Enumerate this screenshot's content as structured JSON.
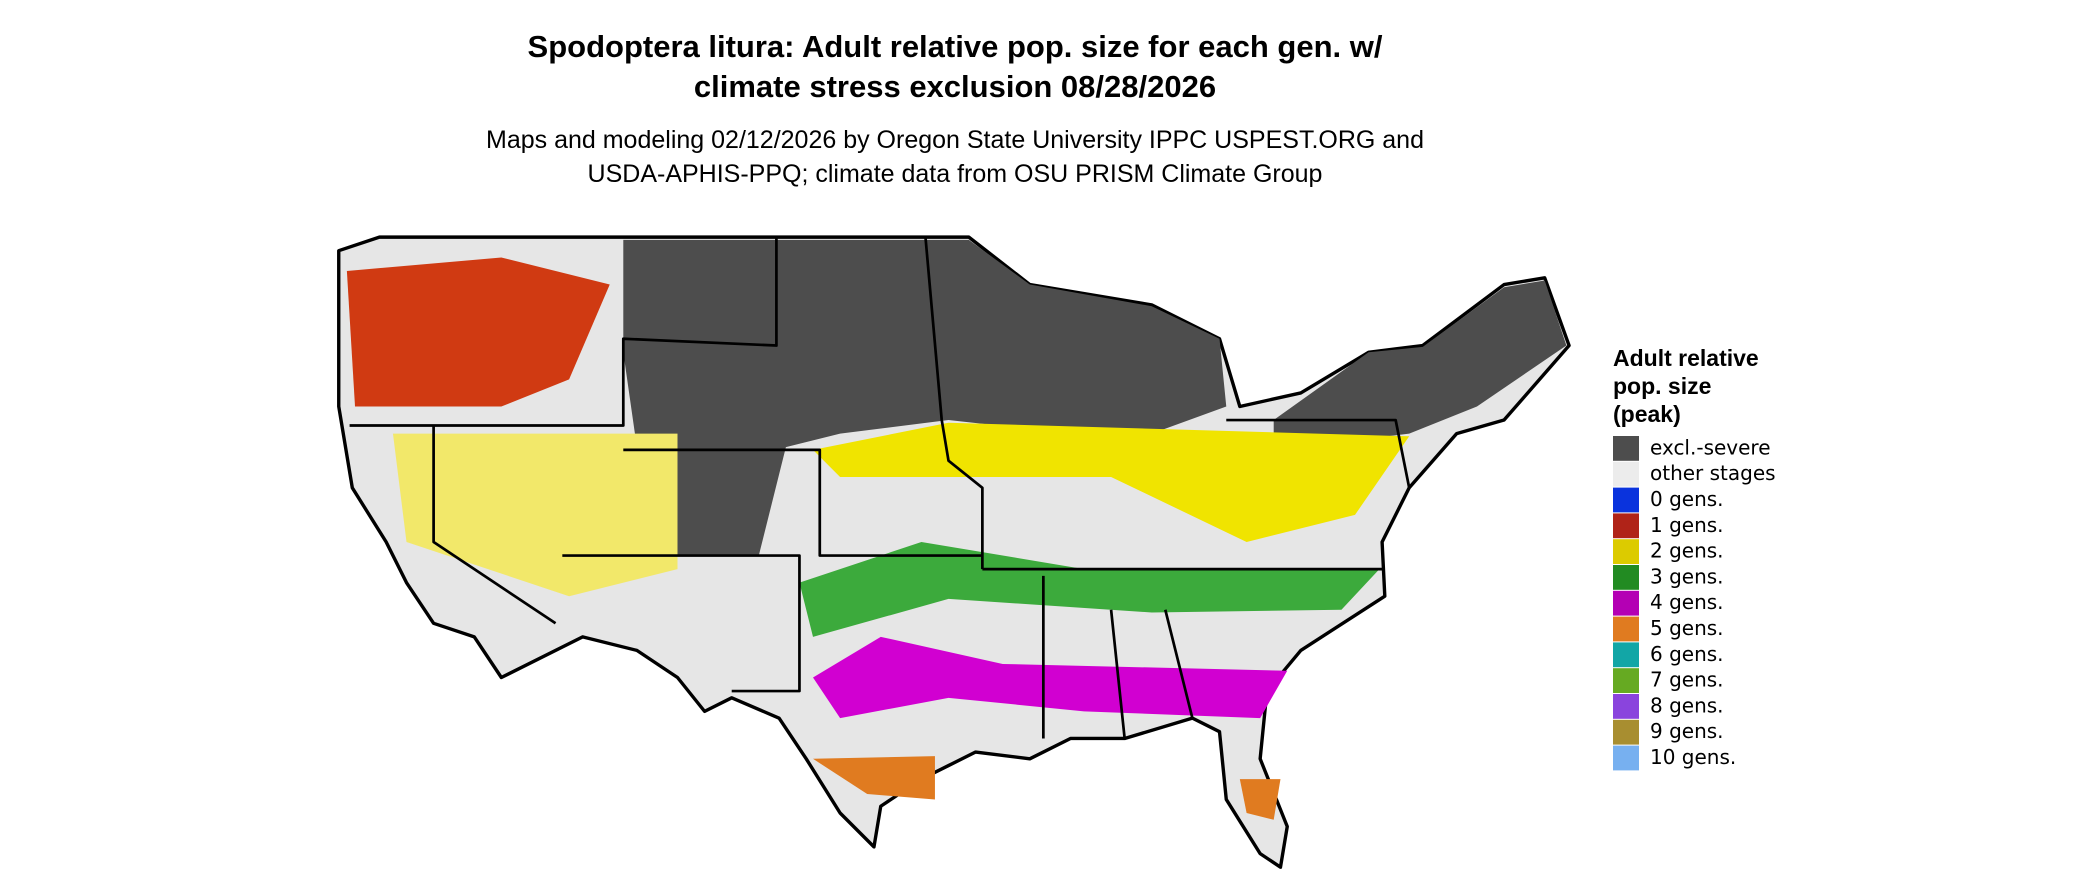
{
  "title_lines": [
    "Spodoptera litura: Adult relative pop. size for each gen. w/",
    "climate stress exclusion 08/28/2026"
  ],
  "subtitle_lines": [
    "Maps and modeling 02/12/2026 by Oregon State University IPPC USPEST.ORG and",
    "USDA-APHIS-PPQ; climate data from OSU PRISM Climate Group"
  ],
  "legend": {
    "title_lines": [
      "Adult relative",
      "pop. size",
      "(peak)"
    ],
    "items": [
      {
        "label": "excl.-severe",
        "color": "#4d4d4d"
      },
      {
        "label": "other stages",
        "color": "#ececec"
      },
      {
        "label": "0 gens.",
        "color": "#0a33dd"
      },
      {
        "label": "1 gens.",
        "color": "#b02318"
      },
      {
        "label": "2 gens.",
        "color": "#dccb00"
      },
      {
        "label": "3 gens.",
        "color": "#228b22"
      },
      {
        "label": "4 gens.",
        "color": "#b400b4"
      },
      {
        "label": "5 gens.",
        "color": "#e07b20"
      },
      {
        "label": "6 gens.",
        "color": "#12a6a6"
      },
      {
        "label": "7 gens.",
        "color": "#66aa22"
      },
      {
        "label": "8 gens.",
        "color": "#8a44dd"
      },
      {
        "label": "9 gens.",
        "color": "#a88e30"
      },
      {
        "label": "10 gens.",
        "color": "#77b0f0"
      }
    ]
  }
}
